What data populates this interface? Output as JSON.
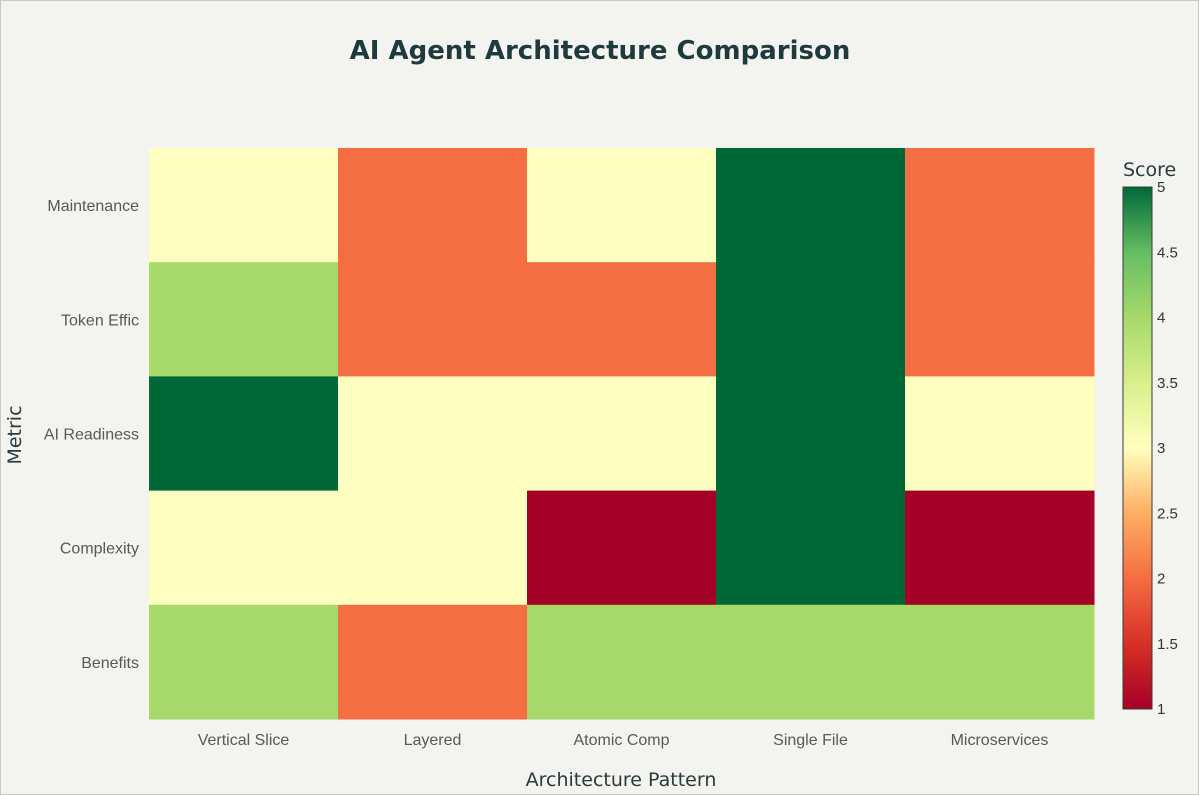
{
  "chart_data": {
    "type": "heatmap",
    "title": "AI Agent Architecture Comparison",
    "xlabel": "Architecture Pattern",
    "ylabel": "Metric",
    "x_categories": [
      "Vertical Slice",
      "Layered",
      "Atomic Comp",
      "Single File",
      "Microservices"
    ],
    "y_categories": [
      "Maintenance",
      "Token Effic",
      "AI Readiness",
      "Complexity",
      "Benefits"
    ],
    "values": [
      [
        3,
        2,
        3,
        5,
        2
      ],
      [
        4,
        2,
        2,
        5,
        2
      ],
      [
        5,
        3,
        3,
        5,
        3
      ],
      [
        3,
        3,
        1,
        5,
        1
      ],
      [
        4,
        2,
        4,
        4,
        4
      ]
    ],
    "colorbar": {
      "title": "Score",
      "min": 1,
      "max": 5,
      "ticks": [
        "1",
        "1.5",
        "2",
        "2.5",
        "3",
        "3.5",
        "4",
        "4.5",
        "5"
      ],
      "colorscale": "RdYlGn"
    },
    "grid": false
  }
}
